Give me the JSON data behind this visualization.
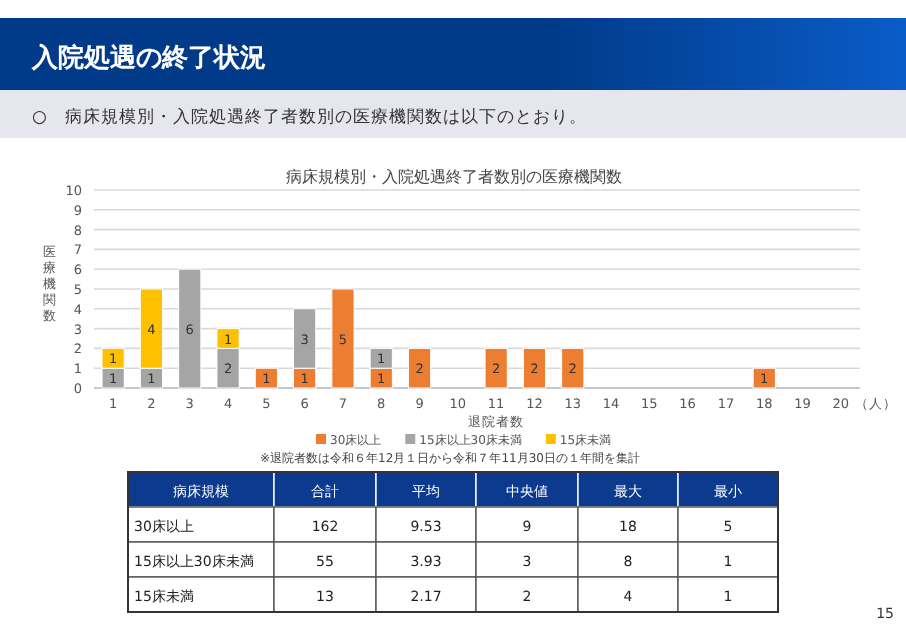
{
  "chart_data": {
    "type": "bar",
    "title": "病床規模別・入院処遇終了者数別の医療機関数",
    "xlabel": "退院者数",
    "ylabel": "医療機関数",
    "categories": [
      "1",
      "2",
      "3",
      "4",
      "5",
      "6",
      "7",
      "8",
      "9",
      "10",
      "11",
      "12",
      "13",
      "14",
      "15",
      "16",
      "17",
      "18",
      "19",
      "20"
    ],
    "stacked": true,
    "data_labels": true,
    "legend": "bottom",
    "grid": "y",
    "ylim": [
      0,
      10
    ],
    "yticks": [
      0,
      1,
      2,
      3,
      4,
      5,
      6,
      7,
      8,
      9,
      10
    ],
    "series": [
      {
        "name": "30床以上",
        "color": "#ed7d31",
        "values": [
          null,
          null,
          null,
          null,
          1,
          1,
          5,
          1,
          2,
          null,
          2,
          2,
          2,
          null,
          null,
          null,
          null,
          1,
          null,
          null
        ]
      },
      {
        "name": "15床以上30床未満",
        "color": "#a5a5a5",
        "values": [
          1,
          1,
          6,
          2,
          null,
          3,
          null,
          1,
          null,
          null,
          null,
          null,
          null,
          null,
          null,
          null,
          null,
          null,
          null,
          null
        ]
      },
      {
        "name": "15床未満",
        "color": "#ffc000",
        "values": [
          1,
          4,
          null,
          1,
          null,
          null,
          null,
          null,
          null,
          null,
          null,
          null,
          null,
          null,
          null,
          null,
          null,
          null,
          null,
          null
        ]
      }
    ],
    "annotations": [
      "入院処遇の終了状況",
      "○　病床規模別・入院処遇終了者数別の医療機関数は以下のとおり。",
      "※退院者数は令和６年12月１日から令和７年11月30日の１年間を集計",
      "15",
      "（人）",
      "病床規模",
      "合計",
      "平均",
      "中央値",
      "最大",
      "最小",
      "30床以上",
      "162",
      "9.53",
      "9",
      "18",
      "5",
      "15床以上30床未満",
      "55",
      "3.93",
      "3",
      "8",
      "1",
      "15床未満",
      "13",
      "2.17",
      "2",
      "4",
      "1"
    ]
  }
}
